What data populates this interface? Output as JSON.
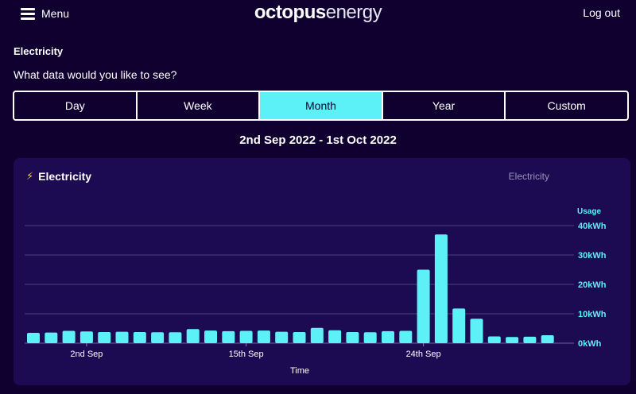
{
  "header": {
    "menu_label": "Menu",
    "logo_bold": "octopus",
    "logo_thin": "energy",
    "logout_label": "Log out"
  },
  "section": {
    "title": "Electricity",
    "question": "What data would you like to see?"
  },
  "tabs": [
    {
      "label": "Day",
      "active": false
    },
    {
      "label": "Week",
      "active": false
    },
    {
      "label": "Month",
      "active": true
    },
    {
      "label": "Year",
      "active": false
    },
    {
      "label": "Custom",
      "active": false
    }
  ],
  "date_range": "2nd Sep 2022 - 1st Oct 2022",
  "card": {
    "title": "Electricity",
    "legend": "Electricity",
    "icon": "lightning-bolt-icon"
  },
  "colors": {
    "background": "#100030",
    "card": "#1c0a52",
    "accent": "#5cf1f7",
    "bolt": "#f6c445"
  },
  "chart_data": {
    "type": "bar",
    "title": "",
    "xlabel": "Time",
    "ylabel": "Usage",
    "ylim": [
      0,
      40
    ],
    "y_ticks": [
      {
        "value": 0,
        "label": "0kWh"
      },
      {
        "value": 10,
        "label": "10kWh"
      },
      {
        "value": 20,
        "label": "20kWh"
      },
      {
        "value": 30,
        "label": "30kWh"
      },
      {
        "value": 40,
        "label": "40kWh"
      }
    ],
    "x_ticks": [
      {
        "index": 3,
        "label": "2nd Sep"
      },
      {
        "index": 12,
        "label": "15th Sep"
      },
      {
        "index": 22,
        "label": "24th Sep"
      }
    ],
    "grid": true,
    "y_axis_side": "right",
    "values": [
      3.5,
      3.6,
      4.2,
      4.0,
      3.8,
      3.9,
      3.8,
      3.7,
      3.7,
      4.8,
      4.3,
      4.1,
      4.2,
      4.3,
      3.9,
      3.8,
      5.2,
      4.4,
      3.8,
      3.7,
      4.1,
      4.2,
      25.0,
      37.0,
      11.8,
      8.3,
      2.3,
      2.1,
      2.2,
      2.7
    ]
  }
}
